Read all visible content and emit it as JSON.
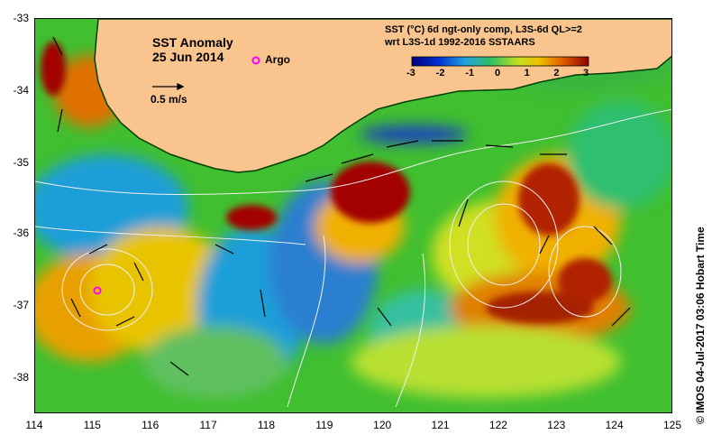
{
  "title": {
    "line1": "SST Anomaly",
    "line2": "25 Jun 2014"
  },
  "argo_label": "Argo",
  "argo_point": {
    "lon": 115.1,
    "lat": -36.8
  },
  "scale": {
    "label": "0.5 m/s"
  },
  "colorbar": {
    "title_line1": "SST (°C) 6d ngt-only comp, L3S-6d QL>=2",
    "title_line2": "wrt L3S-1d 1992-2016 SSTAARS",
    "ticks": [
      "-3",
      "-2",
      "-1",
      "0",
      "1",
      "2",
      "3"
    ],
    "range": [
      -3,
      3
    ]
  },
  "axes": {
    "x_ticks": [
      "114",
      "115",
      "116",
      "117",
      "118",
      "119",
      "120",
      "121",
      "122",
      "123",
      "124",
      "125"
    ],
    "y_ticks": [
      "-33",
      "-34",
      "-35",
      "-36",
      "-37",
      "-38"
    ],
    "lon_range": [
      114,
      125
    ],
    "lat_range": [
      -33,
      -38.5
    ]
  },
  "copyright": "© IMOS 04-Jul-2017 03:06 Hobart Time",
  "colors": {
    "land": "#f9c48e",
    "ocean_base": "#3fbf2f",
    "warm_core": "#a30000",
    "cold": "#1e3fc0",
    "argo": "#ff00ff"
  }
}
